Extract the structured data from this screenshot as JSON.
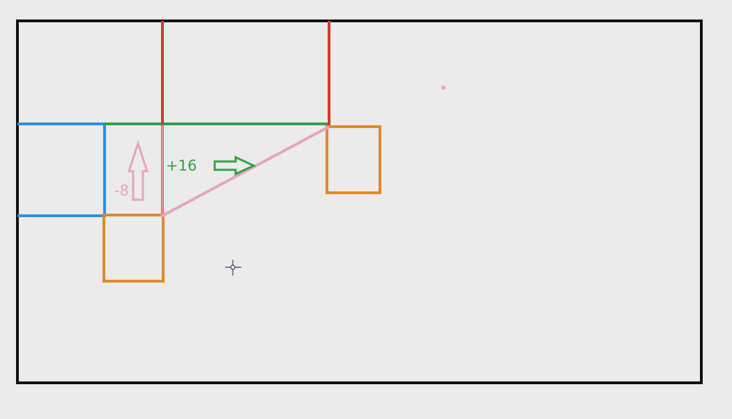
{
  "colors": {
    "background": "#ebebeb",
    "frame": "#111111",
    "blue": "#2b8fe0",
    "green": "#33a04a",
    "red": "#cf3a2c",
    "orange": "#e0892a",
    "pink": "#e8a4b8",
    "cursor": "#3b3f5c"
  },
  "annotations": {
    "horizontal_offset": "+16",
    "vertical_offset": "-8"
  },
  "icons": {
    "up_arrow": "up-arrow-icon",
    "right_arrow": "right-arrow-icon",
    "cursor": "crosshair-cursor-icon"
  }
}
